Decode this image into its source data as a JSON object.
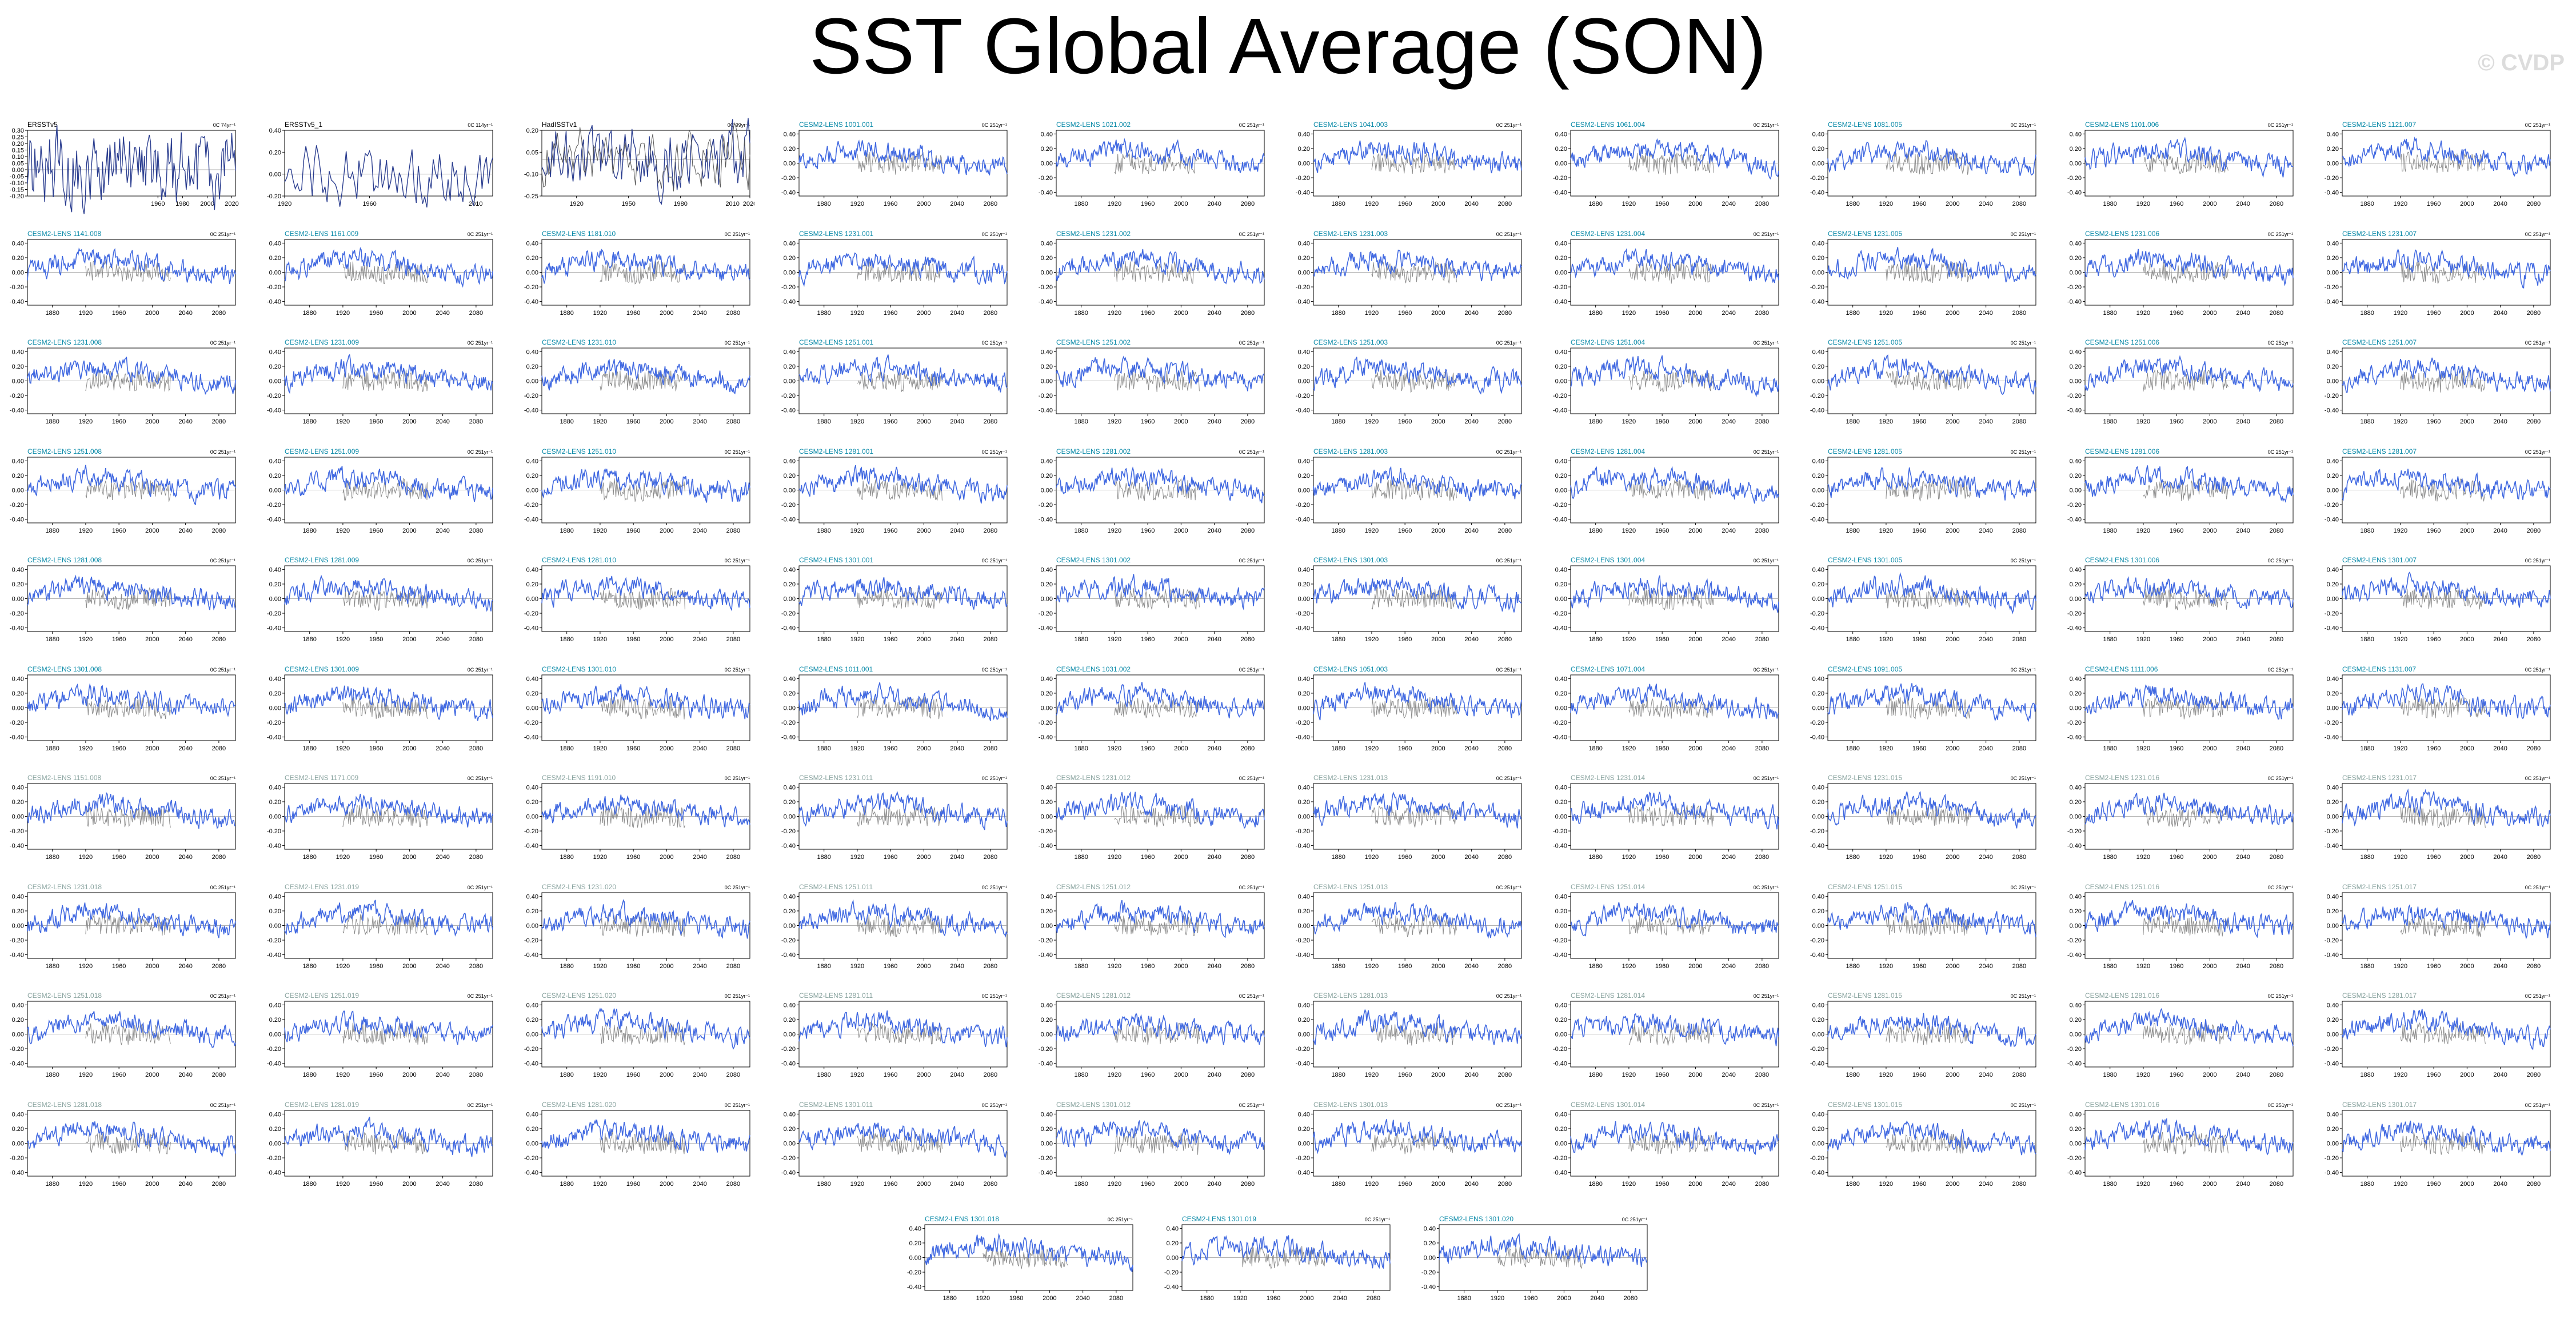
{
  "title": "SST Global Average (SON)",
  "watermark": "© CVDP",
  "colors": {
    "observation_line": "#2a3d8f",
    "model_line": "#4169e1",
    "obs_overlay_line": "#8c8c8c",
    "model_label_teal": "#0a8aa8",
    "model_label_gray": "#8aa4a0",
    "obs_label": "#000000"
  },
  "chart_data": {
    "type": "line",
    "layout": "small-multiples grid: 10 rows x 10 columns plus 3 centered panels in an 11th row",
    "ylim": [
      -0.45,
      0.45
    ],
    "yticks": [
      -0.4,
      -0.2,
      0.0,
      0.2,
      0.4
    ],
    "xticks_model": [
      1880,
      1920,
      1960,
      2000,
      2040,
      2080
    ],
    "xlim_model": [
      1850,
      2100
    ],
    "reference_line_y": 0,
    "panels": [
      {
        "label": "ERSSTv5",
        "kind": "obs",
        "trend": "0C 74yr⁻¹",
        "xlim": [
          1854,
          2023
        ],
        "xticks": [
          1960,
          1980,
          2000,
          2020
        ],
        "yticks": [
          -0.2,
          -0.15,
          -0.1,
          -0.05,
          0.0,
          0.05,
          0.1,
          0.15,
          0.2,
          0.25,
          0.3
        ]
      },
      {
        "label": "ERSSTv5_1",
        "kind": "obs",
        "trend": "0C 114yr⁻¹",
        "xlim": [
          1920,
          2018
        ],
        "xticks": [
          1920,
          1960,
          2010
        ],
        "yticks": [
          -0.2,
          0.0,
          0.2,
          0.4
        ]
      },
      {
        "label": "HadISSTv1",
        "kind": "obs",
        "trend": "0C 99yr⁻¹",
        "xlim": [
          1900,
          2020
        ],
        "xticks": [
          1920,
          1950,
          1980,
          2010,
          2020
        ],
        "yticks": [
          -0.25,
          -0.1,
          0.05,
          0.2
        ]
      },
      {
        "label": "CESM2-LENS 1001.001",
        "kind": "model",
        "trend": "0C 251yr⁻¹"
      },
      {
        "label": "CESM2-LENS 1021.002",
        "kind": "model",
        "trend": "0C 251yr⁻¹"
      },
      {
        "label": "CESM2-LENS 1041.003",
        "kind": "model",
        "trend": "0C 251yr⁻¹"
      },
      {
        "label": "CESM2-LENS 1061.004",
        "kind": "model",
        "trend": "0C 251yr⁻¹"
      },
      {
        "label": "CESM2-LENS 1081.005",
        "kind": "model",
        "trend": "0C 251yr⁻¹"
      },
      {
        "label": "CESM2-LENS 1101.006",
        "kind": "model",
        "trend": "0C 251yr⁻¹"
      },
      {
        "label": "CESM2-LENS 1121.007",
        "kind": "model",
        "trend": "0C 251yr⁻¹"
      },
      {
        "label": "CESM2-LENS 1141.008",
        "kind": "model",
        "trend": "0C 251yr⁻¹"
      },
      {
        "label": "CESM2-LENS 1161.009",
        "kind": "model",
        "trend": "0C 251yr⁻¹"
      },
      {
        "label": "CESM2-LENS 1181.010",
        "kind": "model",
        "trend": "0C 251yr⁻¹"
      },
      {
        "label": "CESM2-LENS 1231.001",
        "kind": "model",
        "trend": "0C 251yr⁻¹"
      },
      {
        "label": "CESM2-LENS 1231.002",
        "kind": "model",
        "trend": "0C 251yr⁻¹"
      },
      {
        "label": "CESM2-LENS 1231.003",
        "kind": "model",
        "trend": "0C 251yr⁻¹"
      },
      {
        "label": "CESM2-LENS 1231.004",
        "kind": "model",
        "trend": "0C 251yr⁻¹"
      },
      {
        "label": "CESM2-LENS 1231.005",
        "kind": "model",
        "trend": "0C 251yr⁻¹"
      },
      {
        "label": "CESM2-LENS 1231.006",
        "kind": "model",
        "trend": "0C 251yr⁻¹"
      },
      {
        "label": "CESM2-LENS 1231.007",
        "kind": "model",
        "trend": "0C 251yr⁻¹"
      },
      {
        "label": "CESM2-LENS 1231.008",
        "kind": "model",
        "trend": "0C 251yr⁻¹"
      },
      {
        "label": "CESM2-LENS 1231.009",
        "kind": "model",
        "trend": "0C 251yr⁻¹"
      },
      {
        "label": "CESM2-LENS 1231.010",
        "kind": "model",
        "trend": "0C 251yr⁻¹"
      },
      {
        "label": "CESM2-LENS 1251.001",
        "kind": "model",
        "trend": "0C 251yr⁻¹"
      },
      {
        "label": "CESM2-LENS 1251.002",
        "kind": "model",
        "trend": "0C 251yr⁻¹"
      },
      {
        "label": "CESM2-LENS 1251.003",
        "kind": "model",
        "trend": "0C 251yr⁻¹"
      },
      {
        "label": "CESM2-LENS 1251.004",
        "kind": "model",
        "trend": "0C 251yr⁻¹"
      },
      {
        "label": "CESM2-LENS 1251.005",
        "kind": "model",
        "trend": "0C 251yr⁻¹"
      },
      {
        "label": "CESM2-LENS 1251.006",
        "kind": "model",
        "trend": "0C 251yr⁻¹"
      },
      {
        "label": "CESM2-LENS 1251.007",
        "kind": "model",
        "trend": "0C 251yr⁻¹"
      },
      {
        "label": "CESM2-LENS 1251.008",
        "kind": "model",
        "trend": "0C 251yr⁻¹"
      },
      {
        "label": "CESM2-LENS 1251.009",
        "kind": "model",
        "trend": "0C 251yr⁻¹"
      },
      {
        "label": "CESM2-LENS 1251.010",
        "kind": "model",
        "trend": "0C 251yr⁻¹"
      },
      {
        "label": "CESM2-LENS 1281.001",
        "kind": "model",
        "trend": "0C 251yr⁻¹"
      },
      {
        "label": "CESM2-LENS 1281.002",
        "kind": "model",
        "trend": "0C 251yr⁻¹"
      },
      {
        "label": "CESM2-LENS 1281.003",
        "kind": "model",
        "trend": "0C 251yr⁻¹"
      },
      {
        "label": "CESM2-LENS 1281.004",
        "kind": "model",
        "trend": "0C 251yr⁻¹"
      },
      {
        "label": "CESM2-LENS 1281.005",
        "kind": "model",
        "trend": "0C 251yr⁻¹"
      },
      {
        "label": "CESM2-LENS 1281.006",
        "kind": "model",
        "trend": "0C 251yr⁻¹"
      },
      {
        "label": "CESM2-LENS 1281.007",
        "kind": "model",
        "trend": "0C 251yr⁻¹"
      },
      {
        "label": "CESM2-LENS 1281.008",
        "kind": "model",
        "trend": "0C 251yr⁻¹"
      },
      {
        "label": "CESM2-LENS 1281.009",
        "kind": "model",
        "trend": "0C 251yr⁻¹"
      },
      {
        "label": "CESM2-LENS 1281.010",
        "kind": "model",
        "trend": "0C 251yr⁻¹"
      },
      {
        "label": "CESM2-LENS 1301.001",
        "kind": "model",
        "trend": "0C 251yr⁻¹"
      },
      {
        "label": "CESM2-LENS 1301.002",
        "kind": "model",
        "trend": "0C 251yr⁻¹"
      },
      {
        "label": "CESM2-LENS 1301.003",
        "kind": "model",
        "trend": "0C 251yr⁻¹"
      },
      {
        "label": "CESM2-LENS 1301.004",
        "kind": "model",
        "trend": "0C 251yr⁻¹"
      },
      {
        "label": "CESM2-LENS 1301.005",
        "kind": "model",
        "trend": "0C 251yr⁻¹"
      },
      {
        "label": "CESM2-LENS 1301.006",
        "kind": "model",
        "trend": "0C 251yr⁻¹"
      },
      {
        "label": "CESM2-LENS 1301.007",
        "kind": "model",
        "trend": "0C 251yr⁻¹"
      },
      {
        "label": "CESM2-LENS 1301.008",
        "kind": "model",
        "trend": "0C 251yr⁻¹"
      },
      {
        "label": "CESM2-LENS 1301.009",
        "kind": "model",
        "trend": "0C 251yr⁻¹"
      },
      {
        "label": "CESM2-LENS 1301.010",
        "kind": "model",
        "trend": "0C 251yr⁻¹"
      },
      {
        "label": "CESM2-LENS 1011.001",
        "kind": "model",
        "trend": "0C 251yr⁻¹"
      },
      {
        "label": "CESM2-LENS 1031.002",
        "kind": "model",
        "trend": "0C 251yr⁻¹"
      },
      {
        "label": "CESM2-LENS 1051.003",
        "kind": "model",
        "trend": "0C 251yr⁻¹"
      },
      {
        "label": "CESM2-LENS 1071.004",
        "kind": "model",
        "trend": "0C 251yr⁻¹"
      },
      {
        "label": "CESM2-LENS 1091.005",
        "kind": "model",
        "trend": "0C 251yr⁻¹"
      },
      {
        "label": "CESM2-LENS 1111.006",
        "kind": "model",
        "trend": "0C 251yr⁻¹"
      },
      {
        "label": "CESM2-LENS 1131.007",
        "kind": "model",
        "trend": "0C 251yr⁻¹"
      },
      {
        "label": "CESM2-LENS 1151.008",
        "kind": "model",
        "trend": "0C 251yr⁻¹"
      },
      {
        "label": "CESM2-LENS 1171.009",
        "kind": "model",
        "trend": "0C 251yr⁻¹"
      },
      {
        "label": "CESM2-LENS 1191.010",
        "kind": "model",
        "trend": "0C 251yr⁻¹"
      },
      {
        "label": "CESM2-LENS 1231.011",
        "kind": "model",
        "trend": "0C 251yr⁻¹"
      },
      {
        "label": "CESM2-LENS 1231.012",
        "kind": "model",
        "trend": "0C 251yr⁻¹"
      },
      {
        "label": "CESM2-LENS 1231.013",
        "kind": "model",
        "trend": "0C 251yr⁻¹"
      },
      {
        "label": "CESM2-LENS 1231.014",
        "kind": "model",
        "trend": "0C 251yr⁻¹"
      },
      {
        "label": "CESM2-LENS 1231.015",
        "kind": "model",
        "trend": "0C 251yr⁻¹"
      },
      {
        "label": "CESM2-LENS 1231.016",
        "kind": "model",
        "trend": "0C 251yr⁻¹"
      },
      {
        "label": "CESM2-LENS 1231.017",
        "kind": "model",
        "trend": "0C 251yr⁻¹"
      },
      {
        "label": "CESM2-LENS 1231.018",
        "kind": "model",
        "trend": "0C 251yr⁻¹"
      },
      {
        "label": "CESM2-LENS 1231.019",
        "kind": "model",
        "trend": "0C 251yr⁻¹"
      },
      {
        "label": "CESM2-LENS 1231.020",
        "kind": "model",
        "trend": "0C 251yr⁻¹"
      },
      {
        "label": "CESM2-LENS 1251.011",
        "kind": "model",
        "trend": "0C 251yr⁻¹"
      },
      {
        "label": "CESM2-LENS 1251.012",
        "kind": "model",
        "trend": "0C 251yr⁻¹"
      },
      {
        "label": "CESM2-LENS 1251.013",
        "kind": "model",
        "trend": "0C 251yr⁻¹"
      },
      {
        "label": "CESM2-LENS 1251.014",
        "kind": "model",
        "trend": "0C 251yr⁻¹"
      },
      {
        "label": "CESM2-LENS 1251.015",
        "kind": "model",
        "trend": "0C 251yr⁻¹"
      },
      {
        "label": "CESM2-LENS 1251.016",
        "kind": "model",
        "trend": "0C 251yr⁻¹"
      },
      {
        "label": "CESM2-LENS 1251.017",
        "kind": "model",
        "trend": "0C 251yr⁻¹"
      },
      {
        "label": "CESM2-LENS 1251.018",
        "kind": "model",
        "trend": "0C 251yr⁻¹"
      },
      {
        "label": "CESM2-LENS 1251.019",
        "kind": "model",
        "trend": "0C 251yr⁻¹"
      },
      {
        "label": "CESM2-LENS 1251.020",
        "kind": "model",
        "trend": "0C 251yr⁻¹"
      },
      {
        "label": "CESM2-LENS 1281.011",
        "kind": "model",
        "trend": "0C 251yr⁻¹"
      },
      {
        "label": "CESM2-LENS 1281.012",
        "kind": "model",
        "trend": "0C 251yr⁻¹"
      },
      {
        "label": "CESM2-LENS 1281.013",
        "kind": "model",
        "trend": "0C 251yr⁻¹"
      },
      {
        "label": "CESM2-LENS 1281.014",
        "kind": "model",
        "trend": "0C 251yr⁻¹"
      },
      {
        "label": "CESM2-LENS 1281.015",
        "kind": "model",
        "trend": "0C 251yr⁻¹"
      },
      {
        "label": "CESM2-LENS 1281.016",
        "kind": "model",
        "trend": "0C 251yr⁻¹"
      },
      {
        "label": "CESM2-LENS 1281.017",
        "kind": "model",
        "trend": "0C 251yr⁻¹"
      },
      {
        "label": "CESM2-LENS 1281.018",
        "kind": "model",
        "trend": "0C 251yr⁻¹"
      },
      {
        "label": "CESM2-LENS 1281.019",
        "kind": "model",
        "trend": "0C 251yr⁻¹"
      },
      {
        "label": "CESM2-LENS 1281.020",
        "kind": "model",
        "trend": "0C 251yr⁻¹"
      },
      {
        "label": "CESM2-LENS 1301.011",
        "kind": "model",
        "trend": "0C 251yr⁻¹"
      },
      {
        "label": "CESM2-LENS 1301.012",
        "kind": "model",
        "trend": "0C 251yr⁻¹"
      },
      {
        "label": "CESM2-LENS 1301.013",
        "kind": "model",
        "trend": "0C 251yr⁻¹"
      },
      {
        "label": "CESM2-LENS 1301.014",
        "kind": "model",
        "trend": "0C 251yr⁻¹"
      },
      {
        "label": "CESM2-LENS 1301.015",
        "kind": "model",
        "trend": "0C 251yr⁻¹"
      },
      {
        "label": "CESM2-LENS 1301.016",
        "kind": "model",
        "trend": "0C 251yr⁻¹"
      },
      {
        "label": "CESM2-LENS 1301.017",
        "kind": "model",
        "trend": "0C 251yr⁻¹"
      },
      {
        "label": "CESM2-LENS 1301.018",
        "kind": "model",
        "trend": "0C 251yr⁻¹"
      },
      {
        "label": "CESM2-LENS 1301.019",
        "kind": "model",
        "trend": "0C 251yr⁻¹"
      },
      {
        "label": "CESM2-LENS 1301.020",
        "kind": "model",
        "trend": "0C 251yr⁻¹"
      }
    ]
  }
}
